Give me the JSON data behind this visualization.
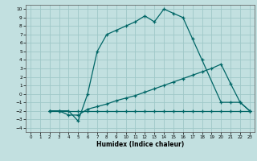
{
  "xlabel": "Humidex (Indice chaleur)",
  "bg_color": "#c2e0e0",
  "grid_color": "#9fc8c8",
  "line_color": "#006666",
  "xlim": [
    -0.5,
    23.5
  ],
  "ylim": [
    -4.5,
    10.5
  ],
  "xticks": [
    0,
    1,
    2,
    3,
    4,
    5,
    6,
    7,
    8,
    9,
    10,
    11,
    12,
    13,
    14,
    15,
    16,
    17,
    18,
    19,
    20,
    21,
    22,
    23
  ],
  "yticks": [
    -4,
    -3,
    -2,
    -1,
    0,
    1,
    2,
    3,
    4,
    5,
    6,
    7,
    8,
    9,
    10
  ],
  "line1_x": [
    2,
    3,
    4,
    5,
    6,
    7,
    8,
    9,
    10,
    11,
    12,
    13,
    14,
    15,
    16,
    17,
    18,
    20,
    21,
    22,
    23
  ],
  "line1_y": [
    -2,
    -2,
    -2,
    -3.2,
    0,
    5,
    7,
    7.5,
    8,
    8.5,
    9.2,
    8.5,
    10,
    9.5,
    9,
    6.5,
    4,
    -1,
    -1,
    -1,
    -2
  ],
  "line2_x": [
    2,
    3,
    5,
    6,
    7,
    8,
    9,
    10,
    11,
    12,
    13,
    14,
    15,
    16,
    17,
    18,
    19,
    20,
    21,
    22,
    23
  ],
  "line2_y": [
    -2,
    -2,
    -2,
    -2,
    -2,
    -2,
    -2,
    -2,
    -2,
    -2,
    -2,
    -2,
    -2,
    -2,
    -2,
    -2,
    -2,
    -2,
    -2,
    -2,
    -2
  ],
  "line3_x": [
    2,
    3,
    4,
    5,
    6,
    7,
    8,
    9,
    10,
    11,
    12,
    13,
    14,
    15,
    16,
    17,
    18,
    19,
    20,
    21,
    22,
    23
  ],
  "line3_y": [
    -2,
    -2,
    -2.5,
    -2.5,
    -1.8,
    -1.5,
    -1.2,
    -0.8,
    -0.5,
    -0.2,
    0.2,
    0.6,
    1.0,
    1.4,
    1.8,
    2.2,
    2.6,
    3.0,
    3.5,
    1.2,
    -1,
    -2
  ]
}
